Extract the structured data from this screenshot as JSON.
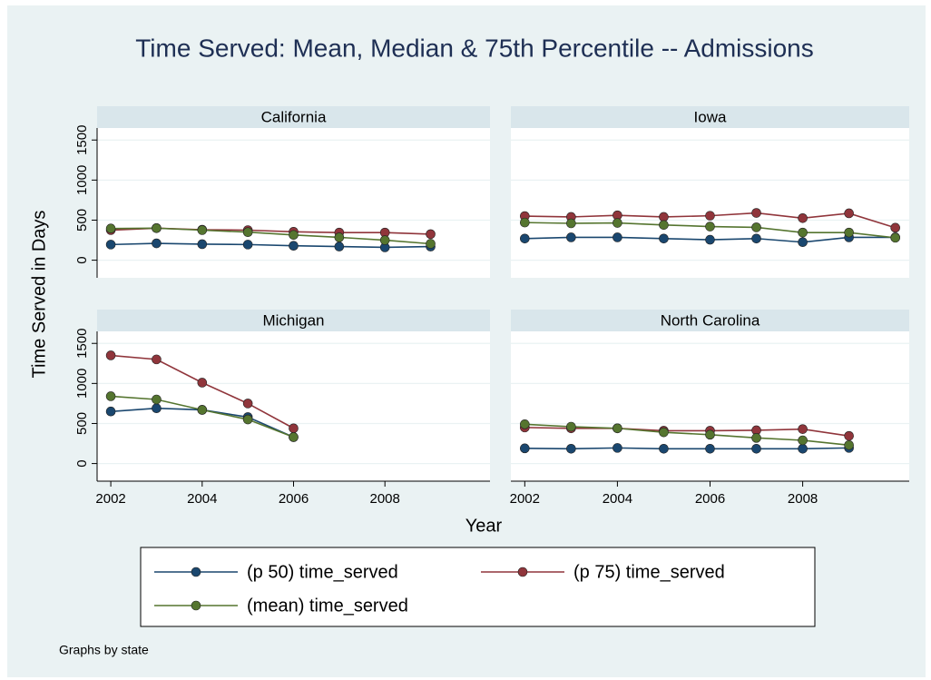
{
  "title": "Time Served: Mean, Median & 75th Percentile -- Admissions",
  "y_label": "Time Served in Days",
  "x_label": "Year",
  "note": "Graphs by state",
  "chart_data": [
    {
      "type": "line",
      "title": "California",
      "x": [
        2002,
        2003,
        2004,
        2005,
        2006,
        2007,
        2008,
        2009
      ],
      "series": [
        {
          "name": "(p 50) time_served",
          "color": "#1a476f",
          "values": [
            195,
            210,
            200,
            195,
            180,
            170,
            160,
            170
          ]
        },
        {
          "name": "(p 75) time_served",
          "color": "#90353b",
          "values": [
            375,
            400,
            380,
            375,
            355,
            345,
            345,
            325
          ]
        },
        {
          "name": "(mean) time_served",
          "color": "#55752f",
          "values": [
            395,
            400,
            375,
            350,
            315,
            285,
            250,
            205
          ]
        }
      ],
      "xlim": [
        2001.7,
        2010.3
      ],
      "ylim": [
        -220,
        1650
      ],
      "xticks": [
        2002,
        2004,
        2006,
        2008
      ],
      "yticks": [
        0,
        500,
        1000,
        1500
      ],
      "grid": true
    },
    {
      "type": "line",
      "title": "Iowa",
      "x": [
        2002,
        2003,
        2004,
        2005,
        2006,
        2007,
        2008,
        2009,
        2010
      ],
      "series": [
        {
          "name": "(p 50) time_served",
          "color": "#1a476f",
          "values": [
            270,
            285,
            285,
            270,
            255,
            270,
            225,
            285,
            285
          ]
        },
        {
          "name": "(p 75) time_served",
          "color": "#90353b",
          "values": [
            550,
            540,
            560,
            540,
            555,
            590,
            525,
            585,
            405
          ]
        },
        {
          "name": "(mean) time_served",
          "color": "#55752f",
          "values": [
            470,
            460,
            465,
            440,
            420,
            410,
            345,
            345,
            280
          ]
        }
      ],
      "xlim": [
        2001.7,
        2010.3
      ],
      "ylim": [
        -220,
        1650
      ],
      "xticks": [
        2002,
        2004,
        2006,
        2008
      ],
      "yticks": [
        0,
        500,
        1000,
        1500
      ],
      "grid": true
    },
    {
      "type": "line",
      "title": "Michigan",
      "x": [
        2002,
        2003,
        2004,
        2005,
        2006
      ],
      "series": [
        {
          "name": "(p 50) time_served",
          "color": "#1a476f",
          "values": [
            650,
            690,
            670,
            580,
            330
          ]
        },
        {
          "name": "(p 75) time_served",
          "color": "#90353b",
          "values": [
            1350,
            1300,
            1010,
            750,
            440
          ]
        },
        {
          "name": "(mean) time_served",
          "color": "#55752f",
          "values": [
            840,
            800,
            670,
            550,
            330
          ]
        }
      ],
      "xlim": [
        2001.7,
        2010.3
      ],
      "ylim": [
        -220,
        1650
      ],
      "xticks": [
        2002,
        2004,
        2006,
        2008
      ],
      "yticks": [
        0,
        500,
        1000,
        1500
      ],
      "grid": true
    },
    {
      "type": "line",
      "title": "North Carolina",
      "x": [
        2002,
        2003,
        2004,
        2005,
        2006,
        2007,
        2008,
        2009
      ],
      "series": [
        {
          "name": "(p 50) time_served",
          "color": "#1a476f",
          "values": [
            190,
            185,
            195,
            185,
            185,
            185,
            185,
            195
          ]
        },
        {
          "name": "(p 75) time_served",
          "color": "#90353b",
          "values": [
            450,
            440,
            440,
            410,
            410,
            415,
            430,
            345
          ]
        },
        {
          "name": "(mean) time_served",
          "color": "#55752f",
          "values": [
            490,
            460,
            440,
            390,
            360,
            320,
            290,
            230
          ]
        }
      ],
      "xlim": [
        2001.7,
        2010.3
      ],
      "ylim": [
        -220,
        1650
      ],
      "xticks": [
        2002,
        2004,
        2006,
        2008
      ],
      "yticks": [
        0,
        500,
        1000,
        1500
      ],
      "grid": true
    }
  ]
}
